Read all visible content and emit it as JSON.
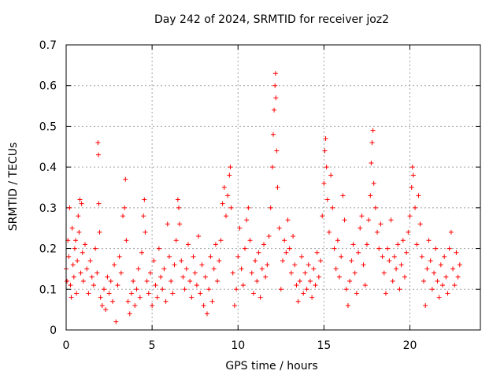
{
  "chart_data": {
    "type": "scatter",
    "title": "Day 242 of 2024, SRMTID for receiver joz2",
    "xlabel": "GPS time / hours",
    "ylabel": "SRMTID / TECUs",
    "xlim": [
      0,
      24.1
    ],
    "ylim": [
      0,
      0.7
    ],
    "xticks": [
      0,
      5,
      10,
      15,
      20
    ],
    "yticks": [
      0,
      0.1,
      0.2,
      0.3,
      0.4,
      0.5,
      0.6,
      0.7
    ],
    "x_tick_labels": [
      "0",
      "5",
      "10",
      "15",
      "20"
    ],
    "y_tick_labels": [
      "0",
      "0.1",
      "0.2",
      "0.3",
      "0.4",
      "0.5",
      "0.6",
      "0.7"
    ],
    "grid": true,
    "marker": "+",
    "color": "#ff0000",
    "series": [
      {
        "name": "SRMTID",
        "points": [
          [
            0.0,
            0.15
          ],
          [
            0.05,
            0.12
          ],
          [
            0.1,
            0.22
          ],
          [
            0.15,
            0.18
          ],
          [
            0.2,
            0.3
          ],
          [
            0.25,
            0.11
          ],
          [
            0.3,
            0.08
          ],
          [
            0.35,
            0.25
          ],
          [
            0.4,
            0.16
          ],
          [
            0.45,
            0.13
          ],
          [
            0.5,
            0.2
          ],
          [
            0.55,
            0.22
          ],
          [
            0.6,
            0.09
          ],
          [
            0.65,
            0.17
          ],
          [
            0.7,
            0.28
          ],
          [
            0.75,
            0.24
          ],
          [
            0.8,
            0.32
          ],
          [
            0.85,
            0.14
          ],
          [
            0.9,
            0.31
          ],
          [
            0.95,
            0.19
          ],
          [
            1.0,
            0.12
          ],
          [
            1.1,
            0.21
          ],
          [
            1.2,
            0.15
          ],
          [
            1.3,
            0.09
          ],
          [
            1.4,
            0.17
          ],
          [
            1.5,
            0.13
          ],
          [
            1.6,
            0.11
          ],
          [
            1.7,
            0.2
          ],
          [
            1.8,
            0.14
          ],
          [
            1.85,
            0.46
          ],
          [
            1.88,
            0.43
          ],
          [
            1.9,
            0.31
          ],
          [
            1.95,
            0.24
          ],
          [
            2.0,
            0.08
          ],
          [
            2.1,
            0.06
          ],
          [
            2.2,
            0.1
          ],
          [
            2.3,
            0.05
          ],
          [
            2.4,
            0.13
          ],
          [
            2.5,
            0.09
          ],
          [
            2.6,
            0.12
          ],
          [
            2.7,
            0.07
          ],
          [
            2.8,
            0.16
          ],
          [
            2.9,
            0.02
          ],
          [
            3.0,
            0.11
          ],
          [
            3.1,
            0.18
          ],
          [
            3.2,
            0.14
          ],
          [
            3.3,
            0.28
          ],
          [
            3.4,
            0.3
          ],
          [
            3.45,
            0.37
          ],
          [
            3.5,
            0.22
          ],
          [
            3.6,
            0.07
          ],
          [
            3.7,
            0.04
          ],
          [
            3.8,
            0.09
          ],
          [
            3.9,
            0.12
          ],
          [
            4.0,
            0.06
          ],
          [
            4.1,
            0.1
          ],
          [
            4.2,
            0.15
          ],
          [
            4.3,
            0.08
          ],
          [
            4.4,
            0.19
          ],
          [
            4.5,
            0.28
          ],
          [
            4.55,
            0.32
          ],
          [
            4.6,
            0.24
          ],
          [
            4.7,
            0.12
          ],
          [
            4.8,
            0.09
          ],
          [
            4.9,
            0.14
          ],
          [
            5.0,
            0.06
          ],
          [
            5.1,
            0.17
          ],
          [
            5.2,
            0.11
          ],
          [
            5.3,
            0.08
          ],
          [
            5.4,
            0.2
          ],
          [
            5.5,
            0.13
          ],
          [
            5.6,
            0.1
          ],
          [
            5.7,
            0.15
          ],
          [
            5.8,
            0.07
          ],
          [
            5.9,
            0.26
          ],
          [
            6.0,
            0.18
          ],
          [
            6.1,
            0.12
          ],
          [
            6.2,
            0.09
          ],
          [
            6.3,
            0.16
          ],
          [
            6.4,
            0.22
          ],
          [
            6.5,
            0.32
          ],
          [
            6.55,
            0.3
          ],
          [
            6.6,
            0.26
          ],
          [
            6.7,
            0.17
          ],
          [
            6.8,
            0.13
          ],
          [
            6.9,
            0.1
          ],
          [
            7.0,
            0.15
          ],
          [
            7.1,
            0.21
          ],
          [
            7.2,
            0.12
          ],
          [
            7.3,
            0.08
          ],
          [
            7.4,
            0.18
          ],
          [
            7.5,
            0.14
          ],
          [
            7.6,
            0.11
          ],
          [
            7.7,
            0.23
          ],
          [
            7.8,
            0.09
          ],
          [
            7.9,
            0.16
          ],
          [
            8.0,
            0.06
          ],
          [
            8.1,
            0.13
          ],
          [
            8.2,
            0.04
          ],
          [
            8.3,
            0.1
          ],
          [
            8.4,
            0.18
          ],
          [
            8.5,
            0.07
          ],
          [
            8.6,
            0.15
          ],
          [
            8.7,
            0.21
          ],
          [
            8.8,
            0.12
          ],
          [
            8.9,
            0.17
          ],
          [
            9.0,
            0.22
          ],
          [
            9.1,
            0.31
          ],
          [
            9.2,
            0.35
          ],
          [
            9.3,
            0.28
          ],
          [
            9.4,
            0.33
          ],
          [
            9.5,
            0.38
          ],
          [
            9.55,
            0.4
          ],
          [
            9.6,
            0.3
          ],
          [
            9.7,
            0.14
          ],
          [
            9.8,
            0.06
          ],
          [
            9.9,
            0.1
          ],
          [
            10.0,
            0.18
          ],
          [
            10.1,
            0.25
          ],
          [
            10.2,
            0.15
          ],
          [
            10.3,
            0.11
          ],
          [
            10.4,
            0.2
          ],
          [
            10.5,
            0.27
          ],
          [
            10.6,
            0.3
          ],
          [
            10.7,
            0.22
          ],
          [
            10.8,
            0.14
          ],
          [
            10.9,
            0.09
          ],
          [
            11.0,
            0.17
          ],
          [
            11.1,
            0.12
          ],
          [
            11.2,
            0.19
          ],
          [
            11.3,
            0.08
          ],
          [
            11.4,
            0.15
          ],
          [
            11.5,
            0.21
          ],
          [
            11.6,
            0.13
          ],
          [
            11.7,
            0.16
          ],
          [
            11.8,
            0.23
          ],
          [
            11.9,
            0.3
          ],
          [
            12.0,
            0.4
          ],
          [
            12.05,
            0.48
          ],
          [
            12.1,
            0.54
          ],
          [
            12.15,
            0.6
          ],
          [
            12.18,
            0.63
          ],
          [
            12.2,
            0.57
          ],
          [
            12.25,
            0.44
          ],
          [
            12.3,
            0.35
          ],
          [
            12.4,
            0.25
          ],
          [
            12.5,
            0.1
          ],
          [
            12.6,
            0.17
          ],
          [
            12.7,
            0.22
          ],
          [
            12.8,
            0.19
          ],
          [
            12.9,
            0.27
          ],
          [
            13.0,
            0.2
          ],
          [
            13.1,
            0.14
          ],
          [
            13.2,
            0.23
          ],
          [
            13.3,
            0.16
          ],
          [
            13.4,
            0.11
          ],
          [
            13.5,
            0.07
          ],
          [
            13.6,
            0.12
          ],
          [
            13.7,
            0.18
          ],
          [
            13.8,
            0.09
          ],
          [
            13.9,
            0.14
          ],
          [
            14.0,
            0.1
          ],
          [
            14.1,
            0.16
          ],
          [
            14.2,
            0.12
          ],
          [
            14.3,
            0.08
          ],
          [
            14.4,
            0.15
          ],
          [
            14.5,
            0.11
          ],
          [
            14.6,
            0.19
          ],
          [
            14.7,
            0.13
          ],
          [
            14.8,
            0.17
          ],
          [
            14.9,
            0.28
          ],
          [
            15.0,
            0.36
          ],
          [
            15.05,
            0.44
          ],
          [
            15.1,
            0.47
          ],
          [
            15.15,
            0.4
          ],
          [
            15.2,
            0.32
          ],
          [
            15.3,
            0.24
          ],
          [
            15.4,
            0.38
          ],
          [
            15.5,
            0.3
          ],
          [
            15.6,
            0.2
          ],
          [
            15.7,
            0.15
          ],
          [
            15.8,
            0.22
          ],
          [
            15.9,
            0.13
          ],
          [
            16.0,
            0.18
          ],
          [
            16.1,
            0.33
          ],
          [
            16.2,
            0.27
          ],
          [
            16.3,
            0.1
          ],
          [
            16.4,
            0.06
          ],
          [
            16.5,
            0.12
          ],
          [
            16.6,
            0.17
          ],
          [
            16.7,
            0.21
          ],
          [
            16.8,
            0.14
          ],
          [
            16.9,
            0.09
          ],
          [
            17.0,
            0.19
          ],
          [
            17.1,
            0.25
          ],
          [
            17.2,
            0.28
          ],
          [
            17.3,
            0.16
          ],
          [
            17.4,
            0.11
          ],
          [
            17.5,
            0.21
          ],
          [
            17.6,
            0.27
          ],
          [
            17.7,
            0.33
          ],
          [
            17.75,
            0.41
          ],
          [
            17.8,
            0.46
          ],
          [
            17.85,
            0.49
          ],
          [
            17.9,
            0.36
          ],
          [
            18.0,
            0.3
          ],
          [
            18.1,
            0.24
          ],
          [
            18.2,
            0.2
          ],
          [
            18.3,
            0.26
          ],
          [
            18.4,
            0.18
          ],
          [
            18.5,
            0.14
          ],
          [
            18.6,
            0.09
          ],
          [
            18.7,
            0.2
          ],
          [
            18.8,
            0.17
          ],
          [
            18.9,
            0.27
          ],
          [
            19.0,
            0.12
          ],
          [
            19.1,
            0.18
          ],
          [
            19.2,
            0.15
          ],
          [
            19.3,
            0.21
          ],
          [
            19.4,
            0.1
          ],
          [
            19.5,
            0.16
          ],
          [
            19.6,
            0.22
          ],
          [
            19.7,
            0.13
          ],
          [
            19.8,
            0.19
          ],
          [
            19.9,
            0.24
          ],
          [
            20.0,
            0.28
          ],
          [
            20.1,
            0.35
          ],
          [
            20.15,
            0.4
          ],
          [
            20.2,
            0.38
          ],
          [
            20.3,
            0.3
          ],
          [
            20.4,
            0.21
          ],
          [
            20.5,
            0.33
          ],
          [
            20.6,
            0.26
          ],
          [
            20.7,
            0.18
          ],
          [
            20.8,
            0.12
          ],
          [
            20.9,
            0.06
          ],
          [
            21.0,
            0.15
          ],
          [
            21.1,
            0.22
          ],
          [
            21.2,
            0.17
          ],
          [
            21.3,
            0.1
          ],
          [
            21.4,
            0.14
          ],
          [
            21.5,
            0.2
          ],
          [
            21.6,
            0.12
          ],
          [
            21.7,
            0.08
          ],
          [
            21.8,
            0.16
          ],
          [
            21.9,
            0.11
          ],
          [
            22.0,
            0.18
          ],
          [
            22.1,
            0.13
          ],
          [
            22.2,
            0.09
          ],
          [
            22.3,
            0.2
          ],
          [
            22.4,
            0.24
          ],
          [
            22.5,
            0.15
          ],
          [
            22.6,
            0.11
          ],
          [
            22.7,
            0.19
          ],
          [
            22.8,
            0.13
          ],
          [
            22.9,
            0.16
          ]
        ]
      }
    ]
  }
}
